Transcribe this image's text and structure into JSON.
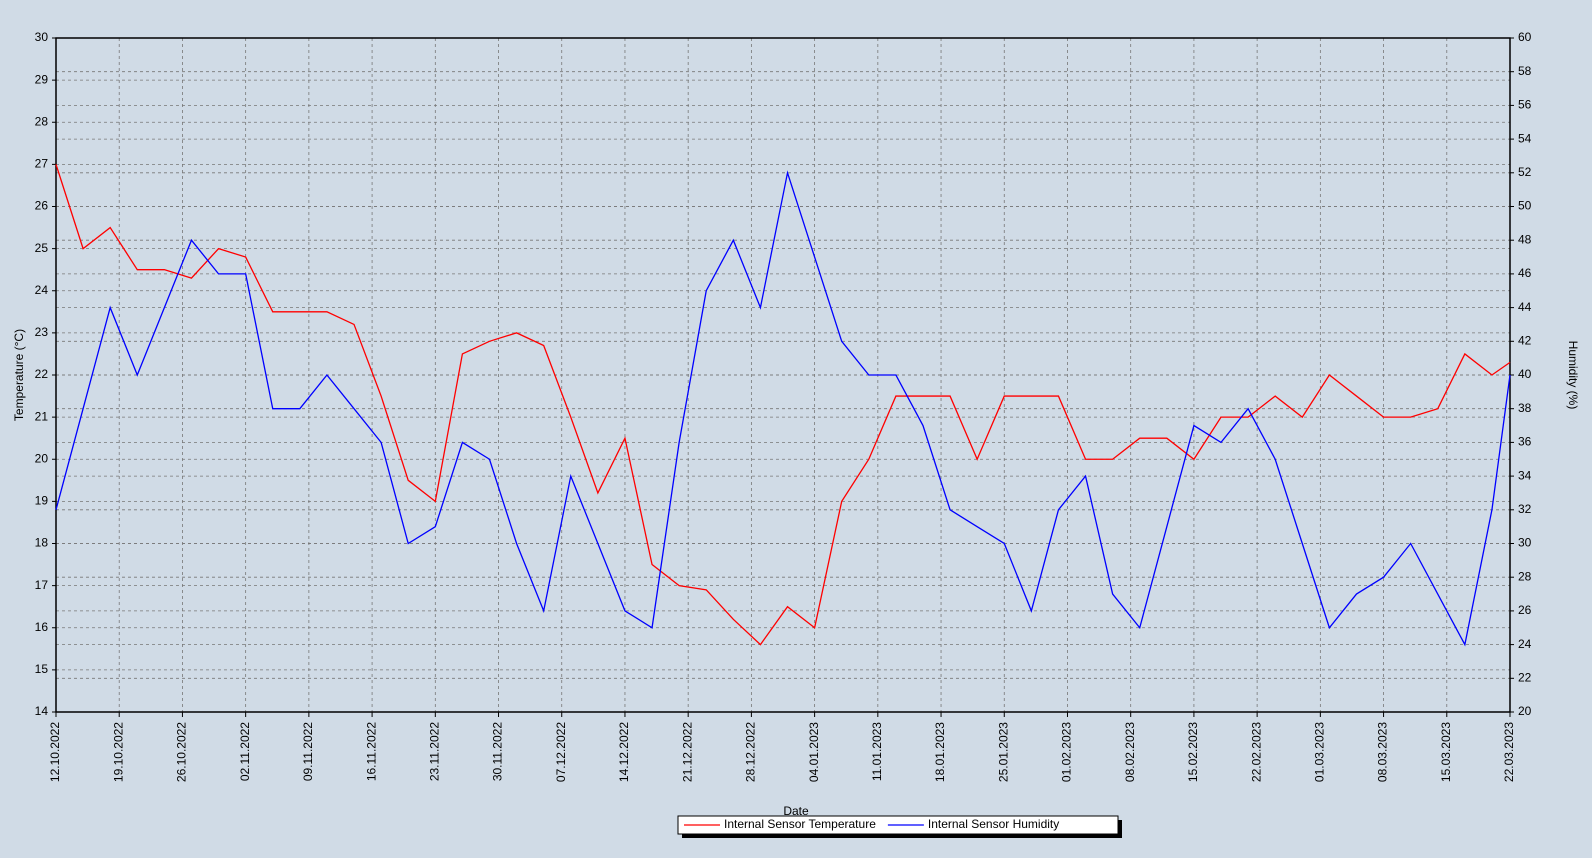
{
  "chart_data": {
    "type": "line",
    "x_label": "Date",
    "y_label": "Temperature (°C)",
    "y2_label": "Humidity (%)",
    "x": [
      "12.10.2022",
      "15.10.2022",
      "18.10.2022",
      "21.10.2022",
      "24.10.2022",
      "27.10.2022",
      "30.10.2022",
      "02.11.2022",
      "05.11.2022",
      "08.11.2022",
      "11.11.2022",
      "14.11.2022",
      "17.11.2022",
      "20.11.2022",
      "23.11.2022",
      "26.11.2022",
      "29.11.2022",
      "02.12.2022",
      "05.12.2022",
      "08.12.2022",
      "11.12.2022",
      "14.12.2022",
      "17.12.2022",
      "20.12.2022",
      "23.12.2022",
      "26.12.2022",
      "29.12.2022",
      "01.01.2023",
      "04.01.2023",
      "07.01.2023",
      "10.01.2023",
      "13.01.2023",
      "16.01.2023",
      "19.01.2023",
      "22.01.2023",
      "25.01.2023",
      "28.01.2023",
      "31.01.2023",
      "03.02.2023",
      "06.02.2023",
      "09.02.2023",
      "12.02.2023",
      "15.02.2023",
      "18.02.2023",
      "21.02.2023",
      "24.02.2023",
      "27.02.2023",
      "02.03.2023",
      "05.03.2023",
      "08.03.2023",
      "11.03.2023",
      "14.03.2023",
      "17.03.2023",
      "20.03.2023",
      "22.03.2023"
    ],
    "series": [
      {
        "name": "Internal Sensor Temperature",
        "color": "#ff0000",
        "axis": "y",
        "values": [
          27,
          25,
          25.5,
          24.5,
          24.5,
          24.3,
          25,
          24.8,
          23.5,
          23.5,
          23.5,
          23.2,
          21.5,
          19.5,
          19,
          22.5,
          22.8,
          23,
          22.7,
          21,
          19.2,
          20.5,
          17.5,
          17,
          16.9,
          16.2,
          15.6,
          16.5,
          16,
          19,
          20,
          21.5,
          21.5,
          21.5,
          20,
          21.5,
          21.5,
          21.5,
          20,
          20,
          20.5,
          20.5,
          20,
          21,
          21,
          21.5,
          21,
          22,
          21.5,
          21,
          21,
          21.2,
          22.5,
          22,
          22.3
        ]
      },
      {
        "name": "Internal Sensor Humidity",
        "color": "#0000ff",
        "axis": "y2",
        "values": [
          32,
          38,
          44,
          40,
          44,
          48,
          46,
          46,
          38,
          38,
          40,
          38,
          36,
          30,
          31,
          36,
          35,
          30,
          26,
          34,
          30,
          26,
          25,
          36,
          45,
          48,
          44,
          52,
          47,
          42,
          40,
          40,
          37,
          32,
          31,
          30,
          26,
          32,
          34,
          27,
          25,
          31,
          37,
          36,
          38,
          35,
          30,
          25,
          27,
          28,
          30,
          27,
          24,
          32,
          40
        ]
      }
    ],
    "xlim": [
      "12.10.2022",
      "22.03.2023"
    ],
    "xticks": [
      "12.10.2022",
      "19.10.2022",
      "26.10.2022",
      "02.11.2022",
      "09.11.2022",
      "16.11.2022",
      "23.11.2022",
      "30.11.2022",
      "07.12.2022",
      "14.12.2022",
      "21.12.2022",
      "28.12.2022",
      "04.01.2023",
      "11.01.2023",
      "18.01.2023",
      "25.01.2023",
      "01.02.2023",
      "08.02.2023",
      "15.02.2023",
      "22.02.2023",
      "01.03.2023",
      "08.03.2023",
      "15.03.2023",
      "22.03.2023"
    ],
    "ylim": [
      14,
      30
    ],
    "yticks": [
      14,
      15,
      16,
      17,
      18,
      19,
      20,
      21,
      22,
      23,
      24,
      25,
      26,
      27,
      28,
      29,
      30
    ],
    "y2lim": [
      20,
      60
    ],
    "y2ticks": [
      20,
      22,
      24,
      26,
      28,
      30,
      32,
      34,
      36,
      38,
      40,
      42,
      44,
      46,
      48,
      50,
      52,
      54,
      56,
      58,
      60
    ],
    "grid": true
  }
}
